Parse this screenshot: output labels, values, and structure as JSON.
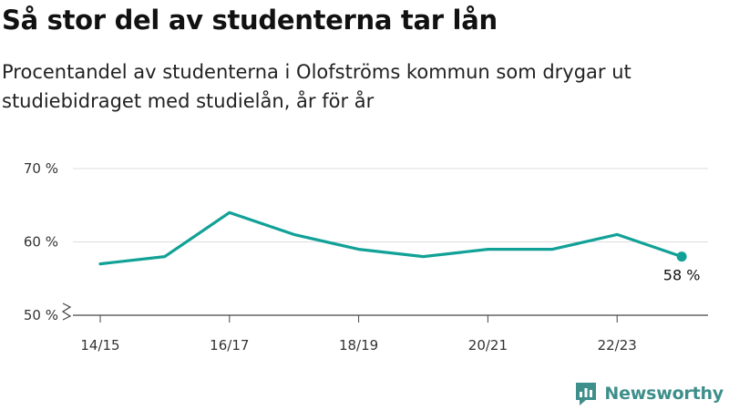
{
  "header": {
    "title": "Så stor del av studenterna tar lån",
    "subtitle": "Procentandel av studenterna i Olofströms kommun som drygar ut studiebidraget med studielån, år för år"
  },
  "brand": {
    "name": "Newsworthy",
    "icon": "newsworthy-logo-icon"
  },
  "colors": {
    "line": "#11a196",
    "grid": "#dcdcdc",
    "axis": "#444444",
    "brand": "#3e8f8b"
  },
  "chart_data": {
    "type": "line",
    "title": "Så stor del av studenterna tar lån",
    "subtitle": "Procentandel av studenterna i Olofströms kommun som drygar ut studiebidraget med studielån, år för år",
    "x": [
      "14/15",
      "15/16",
      "16/17",
      "17/18",
      "18/19",
      "19/20",
      "20/21",
      "21/22",
      "22/23",
      "23/24"
    ],
    "x_tick_labels": [
      "14/15",
      "16/17",
      "18/19",
      "20/21",
      "22/23"
    ],
    "series": [
      {
        "values": [
          57,
          58,
          64,
          61,
          59,
          58,
          59,
          59,
          61,
          58
        ]
      }
    ],
    "ylim": [
      50,
      70
    ],
    "y_ticks": [
      50,
      60,
      70
    ],
    "y_tick_labels": [
      "50 %",
      "60 %",
      "70 %"
    ],
    "y_axis_break": true,
    "grid": true,
    "legend": "none",
    "annotation": {
      "label": "58 %"
    }
  }
}
